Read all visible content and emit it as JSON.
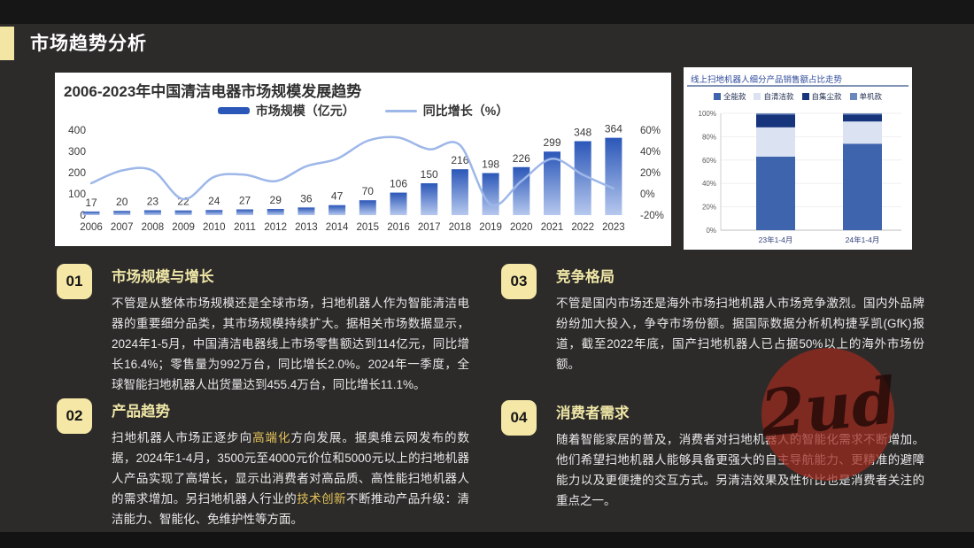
{
  "slide": {
    "title": "市场趋势分析"
  },
  "colors": {
    "background": "#2c2b2a",
    "accent_yellow": "#f3e5a3",
    "badge_yellow": "#f5e7a6",
    "section_title": "#efe6a6",
    "highlight_gold": "#e4c258",
    "bar_gradient_top": "#2b57b8",
    "bar_gradient_bottom": "#b6c8ee",
    "growth_line": "#9db7e9",
    "watermark_red": "#9e2a1f"
  },
  "chart_data": [
    {
      "type": "bar",
      "title": "2006-2023年中国清洁电器市场规模发展趋势",
      "categories": [
        "2006",
        "2007",
        "2008",
        "2009",
        "2010",
        "2011",
        "2012",
        "2013",
        "2014",
        "2015",
        "2016",
        "2017",
        "2018",
        "2019",
        "2020",
        "2021",
        "2022",
        "2023"
      ],
      "series": [
        {
          "name": "市场规模（亿元）",
          "type": "bar",
          "values": [
            17,
            20,
            23,
            22,
            24,
            27,
            29,
            36,
            47,
            70,
            106,
            150,
            216,
            198,
            226,
            299,
            348,
            364
          ]
        },
        {
          "name": "同比增长（%）",
          "type": "line",
          "values": [
            10,
            22,
            22,
            -5,
            16,
            18,
            12,
            26,
            33,
            50,
            53,
            42,
            46,
            -10,
            12,
            33,
            18,
            5
          ]
        }
      ],
      "left_axis": {
        "ticks": [
          0,
          100,
          200,
          300,
          400
        ],
        "ylim": [
          0,
          450
        ]
      },
      "right_axis": {
        "ticks": [
          "-20%",
          "0%",
          "20%",
          "40%",
          "60%"
        ],
        "ylim": [
          -20,
          70
        ]
      },
      "legend_position": "top-center",
      "grid": false
    },
    {
      "type": "bar",
      "subtype": "stacked-percent",
      "title": "线上扫地机器人细分产品销售额占比走势",
      "categories": [
        "23年1-4月",
        "24年1-4月"
      ],
      "series": [
        {
          "name": "全能款",
          "values": [
            63,
            74
          ],
          "color": "#3e64ae"
        },
        {
          "name": "自清洁款",
          "values": [
            25,
            19
          ],
          "color": "#dbe3f3"
        },
        {
          "name": "自集尘款",
          "values": [
            11,
            6
          ],
          "color": "#17357d"
        },
        {
          "name": "单机款",
          "values": [
            1,
            1
          ],
          "color": "#6b87bb"
        }
      ],
      "y_ticks": [
        "0%",
        "20%",
        "40%",
        "60%",
        "80%",
        "100%"
      ],
      "ylim": [
        0,
        100
      ],
      "legend_position": "top-center",
      "grid": true
    }
  ],
  "sections": [
    {
      "num": "01",
      "title": "市场规模与增长",
      "runs": [
        {
          "t": "不管是从整体市场规模还是全球市场，扫地机器人作为智能清洁电器的重要细分品类，其市场规模持续扩大。据相关市场数据显示，2024年1-5月，中国清洁电器线上市场零售额达到114亿元，同比增长16.4%；零售量为992万台，同比增长2.0%。2024年一季度，全球智能扫地机器人出货量达到455.4万台，同比增长11.1%。"
        }
      ]
    },
    {
      "num": "02",
      "title": "产品趋势",
      "runs": [
        {
          "t": "扫地机器人市场正逐步向"
        },
        {
          "t": "高端化",
          "hl": true
        },
        {
          "t": "方向发展。据奥维云网发布的数据，2024年1-4月，3500元至4000元价位和5000元以上的扫地机器人产品实现了高增长，显示出消费者对高品质、高性能扫地机器人的需求增加。另扫地机器人行业的"
        },
        {
          "t": "技术创新",
          "hl": true
        },
        {
          "t": "不断推动产品升级：清洁能力、智能化、免维护性等方面。"
        }
      ]
    },
    {
      "num": "03",
      "title": "竞争格局",
      "runs": [
        {
          "t": "不管是国内市场还是海外市场扫地机器人市场竞争激烈。国内外品牌纷纷加大投入，争夺市场份额。据国际数据分析机构捷孚凯(GfK)报道，截至2022年底，国产扫地机器人已占据50%以上的海外市场份额。"
        }
      ]
    },
    {
      "num": "04",
      "title": "消费者需求",
      "runs": [
        {
          "t": "随着智能家居的普及，消费者对扫地机器人的智能化需求不断增加。他们希望扫地机器人能够具备更强大的自主导航能力、更精准的避障能力以及更便捷的交互方式。另清洁效果及性价比也是消费者关注的重点之一。"
        }
      ]
    }
  ],
  "watermark": {
    "text": "2ud"
  }
}
